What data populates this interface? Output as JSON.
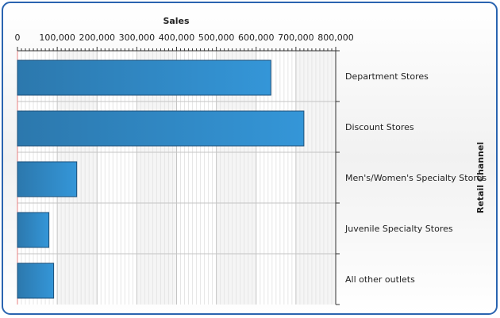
{
  "chart_data": {
    "type": "bar",
    "orientation": "horizontal",
    "xlabel": "Sales",
    "ylabel": "Retail Channel",
    "categories": [
      "Department Stores",
      "Discount Stores",
      "Men's/Women's Specialty Stores",
      "Juvenile Specialty Stores",
      "All other outlets"
    ],
    "values": [
      637000,
      720000,
      149000,
      79000,
      91000
    ],
    "xlim": [
      0,
      800000
    ],
    "xticks": [
      "0",
      "100,000",
      "200,000",
      "300,000",
      "400,000",
      "500,000",
      "600,000",
      "700,000",
      "800,000"
    ],
    "x_axis_position": "top",
    "category_axis_position": "right",
    "grid": true,
    "legend": "none",
    "colors": {
      "bar_dark": "#2c78ad",
      "bar_light": "#3496d8",
      "bar_border": "#1d4f78",
      "frame": "#2a64b0"
    }
  }
}
